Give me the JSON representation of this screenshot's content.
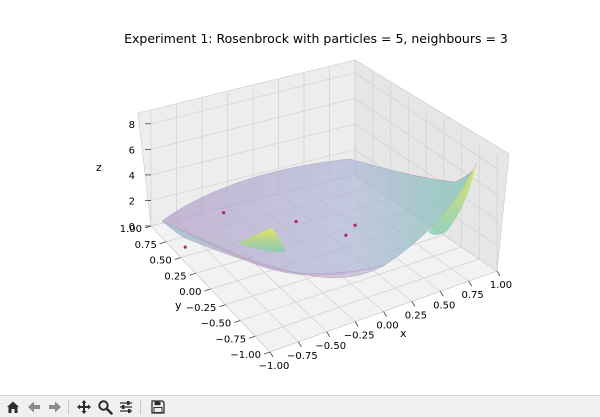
{
  "figure": {
    "title": "Experiment 1: Rosenbrock with particles = 5, neighbours = 3",
    "xlabel": "x",
    "ylabel": "y",
    "zlabel": "z"
  },
  "chart_data": {
    "type": "surface",
    "title": "Experiment 1: Rosenbrock with particles = 5, neighbours = 3",
    "xlabel": "x",
    "ylabel": "y",
    "zlabel": "z",
    "xlim": [
      -1.0,
      1.0
    ],
    "ylim": [
      -1.0,
      1.0
    ],
    "zlim": [
      0,
      9
    ],
    "x_ticks": [
      "−1.00",
      "−0.75",
      "−0.50",
      "−0.25",
      "0.00",
      "0.25",
      "0.50",
      "0.75",
      "1.00"
    ],
    "y_ticks": [
      "−1.00",
      "−0.75",
      "−0.50",
      "−0.25",
      "0.00",
      "0.25",
      "0.50",
      "0.75",
      "1.00"
    ],
    "z_ticks": [
      "0",
      "2",
      "4",
      "6",
      "8"
    ],
    "grid": true,
    "colormap": "viridis (translucent)",
    "particles": [
      {
        "x": -0.9,
        "y": 0.6,
        "z": 0.1
      },
      {
        "x": -0.35,
        "y": 0.9,
        "z": 0.2
      },
      {
        "x": 0.1,
        "y": 0.5,
        "z": 0.3
      },
      {
        "x": 0.35,
        "y": 0.15,
        "z": 0.1
      },
      {
        "x": 0.5,
        "y": 0.25,
        "z": 0.1
      }
    ]
  },
  "colors": {
    "surface_low": "#c9a8c9",
    "surface_high": "#e6e25a",
    "particle": "#b0206a",
    "pane": "#ececec",
    "grid": "#d2d2d2"
  },
  "toolbar": {
    "icons": [
      "home-icon",
      "back-icon",
      "forward-icon",
      "pan-icon",
      "zoom-icon",
      "configure-icon",
      "save-icon"
    ]
  }
}
